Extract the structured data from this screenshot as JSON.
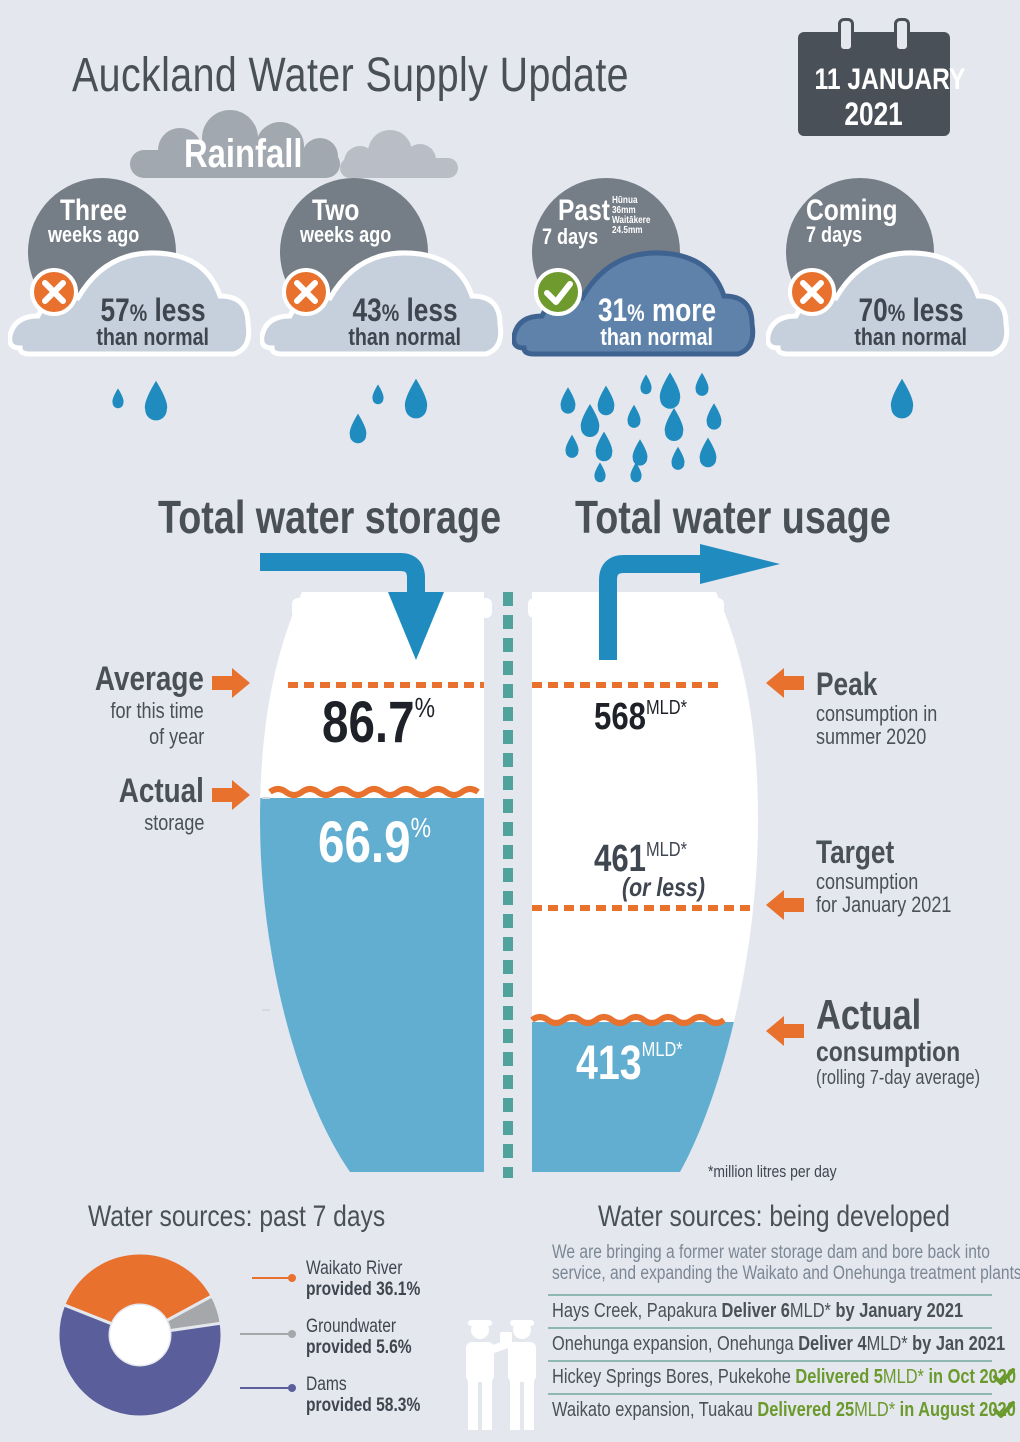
{
  "title": "Auckland Water Supply Update",
  "date": {
    "line1": "11 JANUARY",
    "line2": "2021"
  },
  "rainfall": {
    "heading": "Rainfall",
    "periods": [
      {
        "title1": "Three",
        "title2": "weeks ago",
        "status": "cross",
        "percent": "57",
        "symbol": "%",
        "trend": " less",
        "than": "than normal",
        "drops": "2"
      },
      {
        "title1": "Two",
        "title2": "weeks ago",
        "status": "cross",
        "percent": "43",
        "symbol": "%",
        "trend": " less",
        "than": "than normal",
        "drops": "3"
      },
      {
        "title1": "Past",
        "title2": "7 days",
        "status": "check",
        "percent": "31",
        "symbol": "%",
        "trend": " more",
        "than": "than normal",
        "drops": "many",
        "detail": {
          "huanua": "Hūnua",
          "huanua_mm": "36mm",
          "waitakere": "Waitākere",
          "waitakere_mm": "24.5mm"
        }
      },
      {
        "title1": "Coming",
        "title2": "7 days",
        "status": "cross",
        "percent": "70",
        "symbol": "%",
        "trend": " less",
        "than": "than normal",
        "drops": "1"
      }
    ]
  },
  "storage": {
    "heading": "Total water storage",
    "average_label": "Average",
    "average_sub1": "for this time",
    "average_sub2": "of year",
    "average_value": "86.7",
    "actual_label": "Actual",
    "actual_sub": "storage",
    "actual_value": "66.9",
    "percent_sign": "%",
    "fill_fraction": 0.669
  },
  "usage": {
    "heading": "Total water usage",
    "peak_label": "Peak",
    "peak_sub1": "consumption in",
    "peak_sub2": "summer 2020",
    "peak_value": "568",
    "target_label": "Target",
    "target_sub1": "consumption",
    "target_sub2": "for January 2021",
    "target_value": "461",
    "target_note": "(or less)",
    "actual_label": "Actual",
    "actual_sub1": "consumption",
    "actual_sub2": "(rolling 7-day average)",
    "actual_value": "413",
    "unit": "MLD*",
    "footnote": "*million litres per day"
  },
  "sources": {
    "heading": "Water sources: past 7 days",
    "chart_data": {
      "type": "pie",
      "categories": [
        "Waikato River",
        "Groundwater",
        "Dams"
      ],
      "values": [
        36.1,
        5.6,
        58.3
      ],
      "colors": [
        "#e8712d",
        "#a5a7aa",
        "#5a5f9b"
      ]
    },
    "items": [
      {
        "name": "Waikato River",
        "text": "provided 36.1%"
      },
      {
        "name": "Groundwater",
        "text": "provided 5.6%"
      },
      {
        "name": "Dams",
        "text": "provided 58.3%"
      }
    ]
  },
  "developing": {
    "heading": "Water sources: being developed",
    "intro1": "We are bringing a former water storage dam and bore back into",
    "intro2": "service, and expanding the Waikato and Onehunga treatment plants.",
    "rows": [
      {
        "place": "Hays Creek, Papakura ",
        "action": "Deliver 6",
        "unit": "MLD*",
        "tail": " by January 2021",
        "done": false
      },
      {
        "place": "Onehunga expansion, Onehunga ",
        "action": "Deliver 4",
        "unit": "MLD*",
        "tail": " by Jan 2021",
        "done": false
      },
      {
        "place": "Hickey Springs Bores, Pukekohe ",
        "action": "Delivered 5",
        "unit": "MLD*",
        "tail": " in Oct 2020",
        "done": true
      },
      {
        "place": "Waikato expansion, Tuakau ",
        "action": "Delivered 25",
        "unit": "MLD*",
        "tail": " in August 2020",
        "done": true
      }
    ]
  }
}
